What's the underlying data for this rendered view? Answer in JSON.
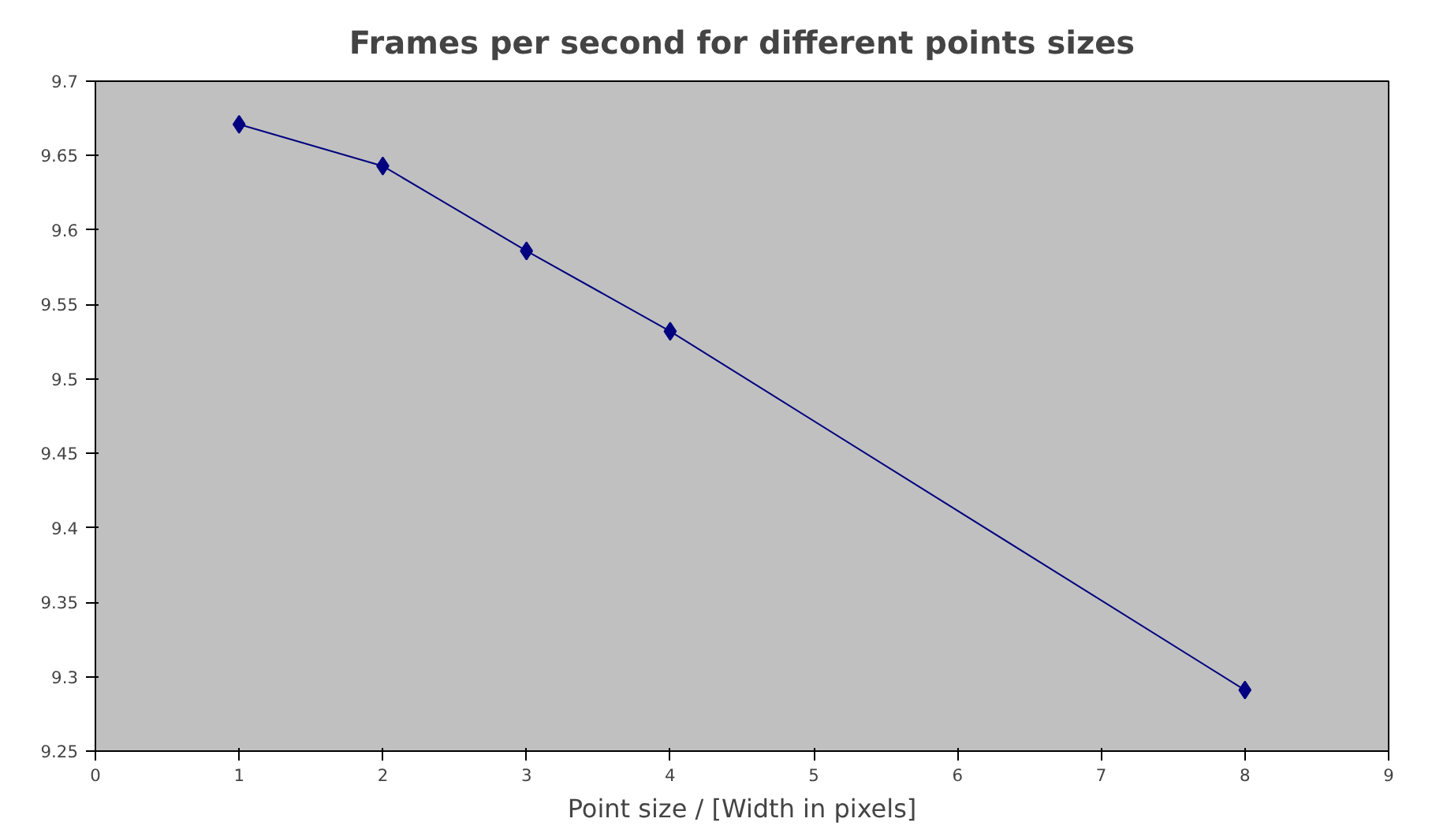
{
  "chart_data": {
    "type": "line",
    "title": "Frames per second for different points sizes",
    "xlabel": "Point size / [Width in pixels]",
    "x": [
      1,
      2,
      3,
      4,
      8
    ],
    "series": [
      {
        "color": "#000080",
        "values": [
          9.671,
          9.643,
          9.586,
          9.532,
          9.291
        ]
      }
    ],
    "xlim": [
      0,
      9
    ],
    "xticks": [
      0,
      1,
      2,
      3,
      4,
      5,
      6,
      7,
      8,
      9
    ],
    "ylim": [
      9.25,
      9.7
    ],
    "yticks": [
      {
        "value": 9.25,
        "label": "9.25"
      },
      {
        "value": 9.3,
        "label": "9.3"
      },
      {
        "value": 9.35,
        "label": "9.35"
      },
      {
        "value": 9.4,
        "label": "9.4"
      },
      {
        "value": 9.45,
        "label": "9.45"
      },
      {
        "value": 9.5,
        "label": "9.5"
      },
      {
        "value": 9.55,
        "label": "9.55"
      },
      {
        "value": 9.6,
        "label": "9.6"
      },
      {
        "value": 9.65,
        "label": "9.65"
      },
      {
        "value": 9.7,
        "label": "9.7"
      }
    ],
    "grid": false,
    "marker": "diamond",
    "line_style": "solid"
  }
}
